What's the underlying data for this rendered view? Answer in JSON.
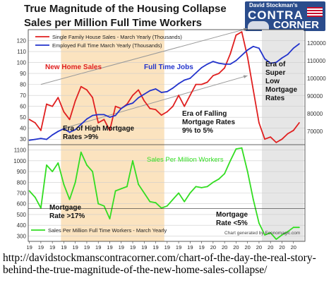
{
  "title_line1": "True Magnitude of the Housing Collapse",
  "title_line2": "Sales per Million Full Time Workers",
  "logo": {
    "line1": "David Stockman's",
    "line2": "CONTRA",
    "line3": "CORNER"
  },
  "url_text": "http://davidstockmanscontracorner.com/chart-of-the-day-the-real-story-behind-the-true-magnitude-of-the-new-home-sales-collapse/",
  "colors": {
    "red": "#e02020",
    "blue": "#2233cc",
    "green": "#33dd22",
    "shade_orange": "#fbe3bf",
    "shade_gray": "#e6e6e6",
    "grid": "#cccccc"
  },
  "chart_data": [
    {
      "type": "line",
      "x": [
        1968,
        1969,
        1970,
        1971,
        1972,
        1973,
        1974,
        1975,
        1976,
        1977,
        1978,
        1979,
        1980,
        1981,
        1982,
        1983,
        1984,
        1985,
        1986,
        1987,
        1988,
        1989,
        1990,
        1991,
        1992,
        1993,
        1994,
        1995,
        1996,
        1997,
        1998,
        1999,
        2000,
        2001,
        2002,
        2003,
        2004,
        2005,
        2006,
        2007,
        2008,
        2009,
        2010,
        2011,
        2012,
        2013,
        2014,
        2015
      ],
      "series": [
        {
          "name": "Single Family House Sales - March Yearly (Thousands)",
          "color": "#e02020",
          "axis": "left",
          "values": [
            48,
            45,
            38,
            62,
            60,
            68,
            55,
            48,
            65,
            78,
            75,
            68,
            45,
            48,
            38,
            60,
            58,
            62,
            70,
            75,
            65,
            58,
            57,
            52,
            55,
            60,
            70,
            60,
            70,
            80,
            80,
            82,
            88,
            90,
            95,
            108,
            125,
            128,
            105,
            75,
            45,
            30,
            32,
            27,
            30,
            35,
            38,
            45
          ]
        },
        {
          "name": "Employed Full Time March Yearly (Thousands)",
          "color": "#2233cc",
          "axis": "right",
          "values": [
            65000,
            65500,
            66000,
            65500,
            68000,
            70000,
            71500,
            69500,
            71000,
            74000,
            77000,
            79000,
            79500,
            79500,
            78000,
            79000,
            83000,
            85000,
            86000,
            89000,
            91000,
            93000,
            94000,
            92000,
            92500,
            94500,
            97000,
            99000,
            100000,
            103000,
            106000,
            108000,
            109500,
            108500,
            108000,
            108000,
            110000,
            113000,
            116000,
            118000,
            117000,
            111000,
            108500,
            109000,
            111500,
            113500,
            117000,
            119500
          ]
        },
        {
          "name": "Sales Per Million Full Time Workers - March Yearly",
          "color": "#33dd22",
          "axis": "bottom",
          "values": [
            720,
            660,
            560,
            960,
            900,
            980,
            780,
            640,
            800,
            1080,
            960,
            900,
            600,
            580,
            460,
            720,
            740,
            760,
            1000,
            780,
            700,
            620,
            610,
            560,
            580,
            640,
            700,
            620,
            700,
            760,
            750,
            760,
            800,
            830,
            880,
            1000,
            1110,
            1120,
            900,
            640,
            420,
            310,
            330,
            270,
            310,
            340,
            380,
            380
          ]
        }
      ],
      "x_ticks": [
        "19 68",
        "19 70",
        "19 72",
        "19 74",
        "19 76",
        "19 78",
        "19 80",
        "19 82",
        "19 84",
        "19 86",
        "19 88",
        "19 90",
        "19 92",
        "19 94",
        "19 96",
        "19 98",
        "20 00",
        "20 02",
        "20 04",
        "20 06",
        "20 08",
        "20 10",
        "20 12",
        "20 14"
      ],
      "top_left_ticks": [
        "30",
        "40",
        "50",
        "60",
        "70",
        "80",
        "90",
        "100",
        "110",
        "120"
      ],
      "top_right_ticks": [
        "70000",
        "80000",
        "90000",
        "100000",
        "110000",
        "120000"
      ],
      "bottom_left_ticks": [
        "300",
        "400",
        "500",
        "600",
        "700",
        "800",
        "900",
        "1000",
        "1100"
      ],
      "ylim_top_left": [
        25,
        130
      ],
      "ylim_top_right": [
        62500,
        127500
      ],
      "ylim_bottom": [
        250,
        1150
      ],
      "shaded_regions": [
        {
          "from": 1973.5,
          "to": 1991.5,
          "color": "#fbe3bf"
        },
        {
          "from": 2008.5,
          "to": 2015.8,
          "color": "#e6e6e6"
        }
      ],
      "annotations": [
        {
          "text": "New Home Sales",
          "color": "#e02020"
        },
        {
          "text": "Full Time Jobs",
          "color": "#2233cc"
        },
        {
          "text": "Era of High Mortgage Rates >9%",
          "color": "#111111"
        },
        {
          "text": "Era of Falling Mortgage Rates 9% to 5%",
          "color": "#111111"
        },
        {
          "text": "Era of Super Low Mortgage Rates",
          "color": "#111111"
        },
        {
          "text": "Sales Per Million Workers",
          "color": "#33dd22"
        },
        {
          "text": "Mortgage Rate >17%",
          "color": "#111111"
        },
        {
          "text": "Mortgage Rate <5%",
          "color": "#111111"
        }
      ],
      "credit": "Chart generated by Economagic.com",
      "legend_position": "top-left (top panel), bottom-left (bottom panel)"
    }
  ]
}
